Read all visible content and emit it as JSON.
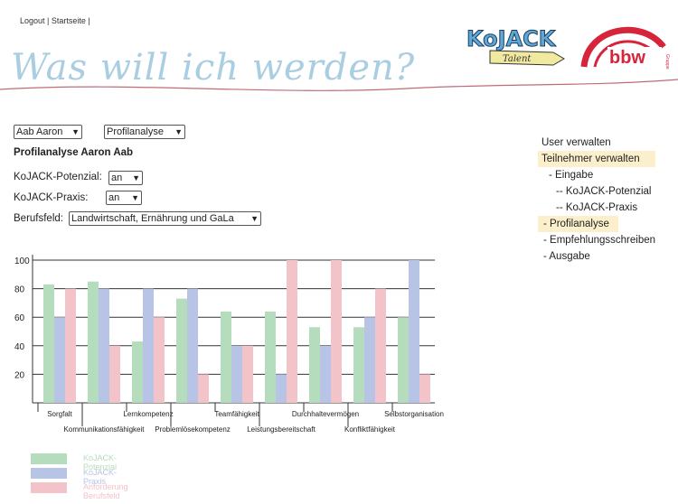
{
  "header": {
    "logout": "Logout",
    "separator1": " | ",
    "home": "Startseite",
    "separator2": " |",
    "banner_title": "Was will ich werden?",
    "logo_kojack_main": "KoJACK",
    "logo_kojack_sub": "Talent",
    "logo_bbw_main": "bbw",
    "logo_bbw_sub": "Gruppe"
  },
  "colors": {
    "potenzial": "#b5dcbd",
    "praxis": "#b8c4e6",
    "anforderung": "#f2c3c9",
    "menu_highlight": "#fbefcc"
  },
  "form": {
    "participant_select": "Aab Aaron",
    "view_select": "Profilanalyse",
    "heading": "Profilanalyse Aaron Aab",
    "potenzial_label": "KoJACK-Potenzial:",
    "potenzial_value": "an",
    "praxis_label": "KoJACK-Praxis:",
    "praxis_value": "an",
    "berufsfeld_label": "Berufsfeld:",
    "berufsfeld_value": "Landwirtschaft, Ernährung und GaLa"
  },
  "menu": {
    "items": [
      {
        "label": "User verwalten",
        "highlight": false
      },
      {
        "label": "Teilnehmer verwalten",
        "highlight": true
      },
      {
        "label": "   - Eingabe",
        "highlight": false
      },
      {
        "label": "      -- KoJACK-Potenzial",
        "highlight": false
      },
      {
        "label": "      -- KoJACK-Praxis",
        "highlight": false
      },
      {
        "label": " - Profilanalyse",
        "highlight": true
      },
      {
        "label": " - Empfehlungsschreiben",
        "highlight": false
      },
      {
        "label": " - Ausgabe",
        "highlight": false
      }
    ]
  },
  "chart_data": {
    "type": "bar",
    "categories": [
      "Sorgfalt",
      "Kommunikationsfähigkeit",
      "Lernkompetenz",
      "Problemlösekompetenz",
      "Teamfähigkeit",
      "Leistungsbereitschaft",
      "Durchhaltevermögen",
      "Konfliktfähigkeit",
      "Selbstorganisation"
    ],
    "series": [
      {
        "name": "KoJACK-Potenzial",
        "values": [
          83,
          85,
          43,
          73,
          64,
          64,
          53,
          53,
          60
        ]
      },
      {
        "name": "KoJACK-Praxis",
        "values": [
          60,
          80,
          80,
          80,
          40,
          20,
          40,
          60,
          100
        ]
      },
      {
        "name": "Anforderung Berufsfeld",
        "values": [
          80,
          40,
          60,
          20,
          40,
          100,
          100,
          80,
          20
        ]
      }
    ],
    "yticks": [
      "20",
      "40",
      "60",
      "80",
      "100"
    ],
    "ylim": [
      0,
      100
    ],
    "grid": true,
    "legend_position": "bottom-left"
  }
}
